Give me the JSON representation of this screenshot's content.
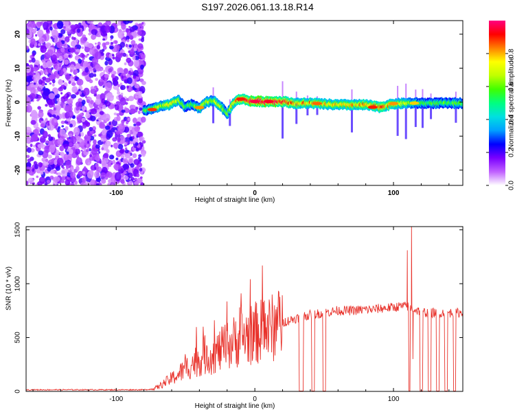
{
  "title": "S197.2026.061.13.18.R14",
  "chart_data": [
    {
      "type": "heatmap",
      "title": "S197.2026.061.13.18.R14",
      "xlabel": "Height of straight line (km)",
      "ylabel": "Frequency (Hz)",
      "xlim": [
        -165,
        150
      ],
      "ylim": [
        -24.5,
        24
      ],
      "xticks": [
        -100,
        0,
        100
      ],
      "xtick_labels": [
        "-100",
        "0",
        "100"
      ],
      "yticks": [
        -20,
        -10,
        0,
        10,
        20
      ],
      "ytick_labels": [
        "-20",
        "-10",
        "0",
        "10",
        "20"
      ],
      "colorbar": {
        "label": "Normalized spectral amplitude",
        "range": [
          0,
          1
        ],
        "ticks": [
          0.0,
          0.2,
          0.4,
          0.6,
          0.8
        ],
        "tick_labels": [
          "0.0",
          "0.2",
          "0.4",
          "0.6",
          "0.8"
        ],
        "colors": [
          "#ffffff",
          "#c060ff",
          "#7a00ff",
          "#0000ff",
          "#00a0ff",
          "#00e0e0",
          "#00ff80",
          "#40ff00",
          "#c0ff00",
          "#ffff00",
          "#ff8000",
          "#ff0000",
          "#ff0080"
        ]
      },
      "noise_region_x": [
        -165,
        -80
      ],
      "ridge_x": [
        -80,
        -70,
        -60,
        -55,
        -50,
        -45,
        -40,
        -35,
        -30,
        -25,
        -20,
        -15,
        -10,
        -5,
        0,
        10,
        20,
        30,
        40,
        50,
        60,
        70,
        80,
        90,
        100,
        110,
        120,
        130,
        140,
        150
      ],
      "ridge_freq": [
        -2.5,
        -1.5,
        -0.5,
        0.5,
        -1.5,
        -0.5,
        -2,
        0,
        0.5,
        -1,
        -3.5,
        0,
        1,
        0.5,
        0.2,
        0.2,
        0.2,
        -0.4,
        -0.3,
        -0.6,
        -0.8,
        -0.8,
        -0.8,
        -1.5,
        -0.5,
        -0.3,
        -0.3,
        -0.3,
        -0.3,
        -0.3
      ],
      "ridge_amp": [
        0.5,
        0.6,
        0.7,
        0.6,
        0.5,
        0.5,
        0.6,
        0.6,
        0.6,
        0.6,
        0.5,
        0.7,
        0.8,
        0.9,
        0.95,
        0.95,
        0.9,
        0.7,
        0.75,
        0.75,
        0.7,
        0.7,
        0.75,
        0.8,
        0.7,
        0.6,
        0.5,
        0.5,
        0.5,
        0.5
      ]
    },
    {
      "type": "line",
      "xlabel": "Height of straight line (km)",
      "ylabel": "SNR (10 * v/v)",
      "xlim": [
        -165,
        150
      ],
      "ylim": [
        0,
        1530
      ],
      "xticks": [
        -100,
        0,
        100
      ],
      "xtick_labels": [
        "-100",
        "0",
        "100"
      ],
      "yticks": [
        0,
        500,
        1000,
        1500
      ],
      "ytick_labels": [
        "0",
        "500",
        "1000",
        "1500"
      ],
      "color": "#e8312a",
      "x": [
        -165,
        -140,
        -120,
        -100,
        -90,
        -80,
        -75,
        -70,
        -65,
        -60,
        -55,
        -50,
        -45,
        -40,
        -35,
        -30,
        -25,
        -20,
        -15,
        -10,
        -5,
        0,
        5,
        10,
        15,
        20,
        25,
        30,
        35,
        40,
        45,
        50,
        55,
        60,
        65,
        70,
        75,
        80,
        85,
        90,
        95,
        100,
        105,
        110,
        115,
        120,
        125,
        130,
        135,
        140,
        145,
        150
      ],
      "y": [
        15,
        15,
        15,
        15,
        15,
        15,
        20,
        40,
        80,
        120,
        160,
        210,
        260,
        300,
        330,
        340,
        380,
        420,
        460,
        500,
        520,
        540,
        560,
        580,
        600,
        640,
        660,
        680,
        700,
        710,
        720,
        730,
        740,
        750,
        750,
        750,
        755,
        760,
        760,
        770,
        775,
        780,
        790,
        790,
        760,
        740,
        730,
        730,
        730,
        730,
        730,
        730
      ],
      "spikes": [
        {
          "x": -54,
          "y": 210
        },
        {
          "x": -42,
          "y": 500
        },
        {
          "x": -36,
          "y": 520
        },
        {
          "x": -27,
          "y": 470
        },
        {
          "x": -20,
          "y": 560
        },
        {
          "x": -11,
          "y": 780
        },
        {
          "x": 110,
          "y": 1310
        },
        {
          "x": 113,
          "y": 1550
        },
        {
          "x": 114,
          "y": 300
        }
      ],
      "dropouts_x": [
        [
          32,
          35
        ],
        [
          41,
          43
        ],
        [
          49,
          51
        ],
        [
          111,
          112
        ],
        [
          119,
          121
        ],
        [
          125,
          127
        ],
        [
          131,
          133
        ],
        [
          137,
          139
        ],
        [
          143,
          145
        ]
      ]
    }
  ]
}
